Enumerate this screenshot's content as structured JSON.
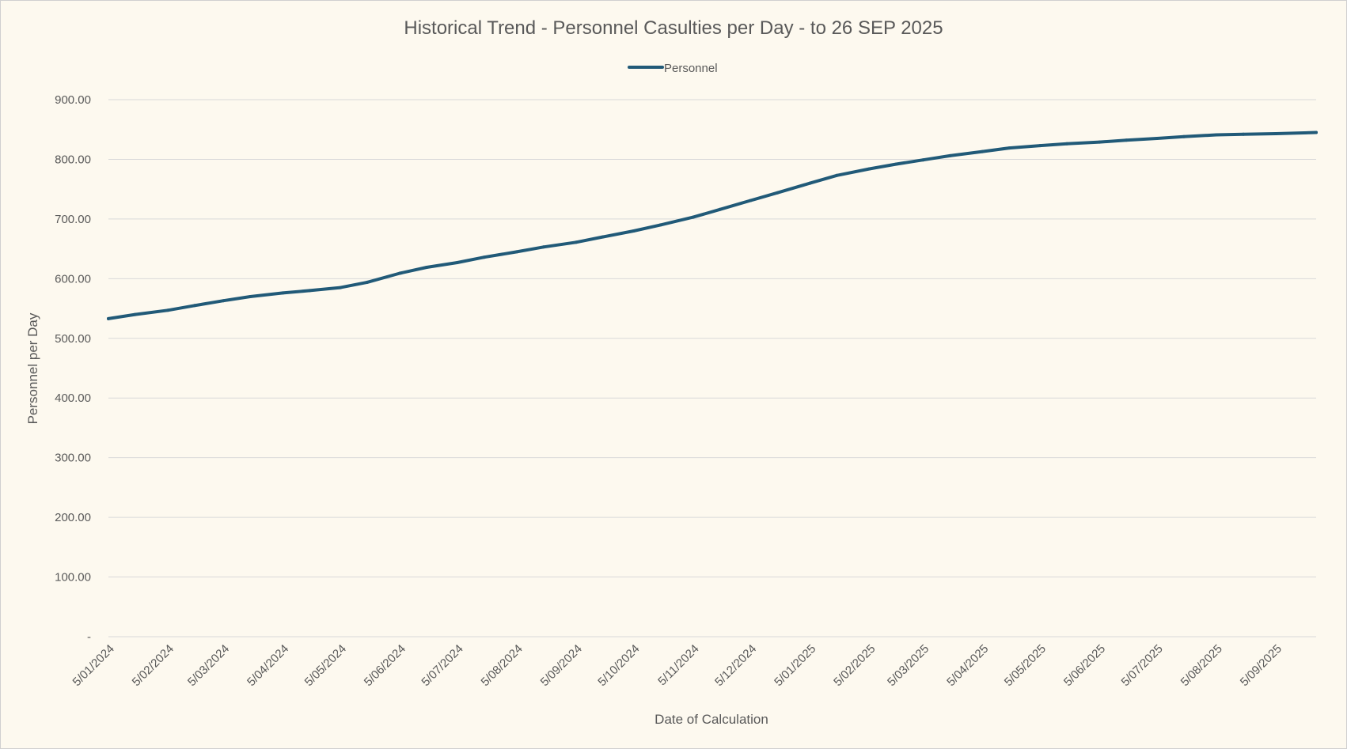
{
  "chart_data": {
    "type": "line",
    "title": "Historical Trend - Personnel Casulties per Day - to 26 SEP 2025",
    "xlabel": "Date of Calculation",
    "ylabel": "Personnel per Day",
    "ylim": [
      0,
      900
    ],
    "y_ticks": [
      "-",
      "100.00",
      "200.00",
      "300.00",
      "400.00",
      "500.00",
      "600.00",
      "700.00",
      "800.00",
      "900.00"
    ],
    "x_ticks": [
      "5/01/2024",
      "5/02/2024",
      "5/03/2024",
      "5/04/2024",
      "5/05/2024",
      "5/06/2024",
      "5/07/2024",
      "5/08/2024",
      "5/09/2024",
      "5/10/2024",
      "5/11/2024",
      "5/12/2024",
      "5/01/2025",
      "5/02/2025",
      "5/03/2025",
      "5/04/2025",
      "5/05/2025",
      "5/06/2025",
      "5/07/2025",
      "5/08/2025",
      "5/09/2025"
    ],
    "x_end_date": "26/09/2025",
    "grid": true,
    "legend_position": "top-center",
    "colors": {
      "background": "#fdf9ef",
      "line": "#215a78",
      "grid": "#d9d9d9",
      "text": "#595959"
    },
    "series": [
      {
        "name": "Personnel",
        "x": [
          "5/01/2024",
          "19/01/2024",
          "5/02/2024",
          "19/02/2024",
          "5/03/2024",
          "19/03/2024",
          "5/04/2024",
          "19/04/2024",
          "5/05/2024",
          "19/05/2024",
          "5/06/2024",
          "19/06/2024",
          "5/07/2024",
          "19/07/2024",
          "5/08/2024",
          "19/08/2024",
          "5/09/2024",
          "19/09/2024",
          "5/10/2024",
          "19/10/2024",
          "5/11/2024",
          "19/11/2024",
          "5/12/2024",
          "19/12/2024",
          "5/01/2025",
          "19/01/2025",
          "5/02/2025",
          "19/02/2025",
          "5/03/2025",
          "19/03/2025",
          "5/04/2025",
          "19/04/2025",
          "5/05/2025",
          "19/05/2025",
          "5/06/2025",
          "19/06/2025",
          "5/07/2025",
          "19/07/2025",
          "5/08/2025",
          "19/08/2025",
          "5/09/2025",
          "26/09/2025"
        ],
        "values": [
          533,
          540,
          547,
          555,
          563,
          570,
          576,
          580,
          585,
          594,
          609,
          619,
          627,
          636,
          645,
          653,
          661,
          670,
          680,
          690,
          703,
          716,
          731,
          744,
          760,
          773,
          784,
          792,
          799,
          806,
          813,
          819,
          823,
          826,
          829,
          832,
          835,
          838,
          841,
          842,
          843,
          845
        ]
      }
    ]
  }
}
